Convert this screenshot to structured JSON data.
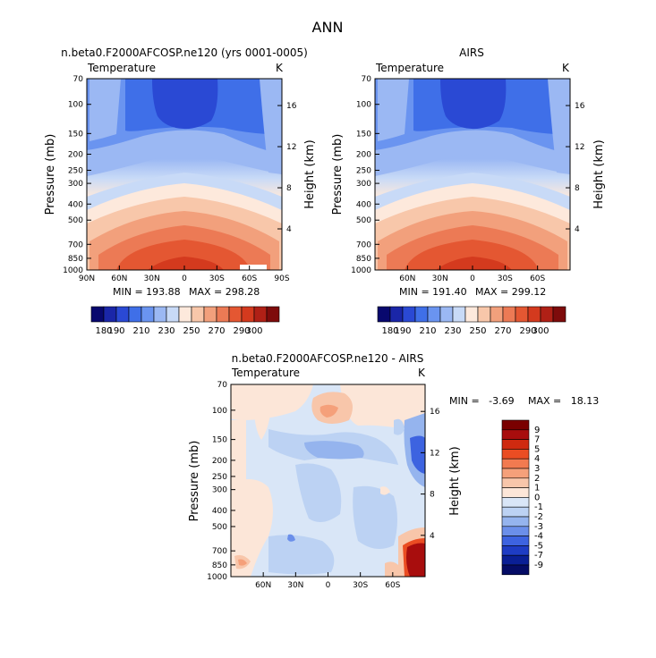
{
  "main_title": "ANN",
  "chart_data": [
    {
      "type": "contour",
      "panel": "top-left",
      "title": "n.beta0.F2000AFCOSP.ne120 (yrs 0001-0005)",
      "variable_label": "Temperature",
      "units": "K",
      "ylabel": "Pressure (mb)",
      "y2label": "Height (km)",
      "pressure_ticks": [
        "70",
        "100",
        "150",
        "200",
        "250",
        "300",
        "400",
        "500",
        "700",
        "850",
        "1000"
      ],
      "height_ticks": [
        "16",
        "12",
        "8",
        "4"
      ],
      "x_ticks": [
        "90N",
        "60N",
        "30N",
        "0",
        "30S",
        "60S",
        "90S"
      ],
      "xlim": [
        90,
        -90
      ],
      "ylim_mb": [
        1000,
        70
      ],
      "min_label": "MIN = 193.88",
      "max_label": "MAX = 298.28",
      "min": 193.88,
      "max": 298.28,
      "colorbar_labels": [
        "180",
        "190",
        "210",
        "230",
        "250",
        "270",
        "290",
        "300"
      ]
    },
    {
      "type": "contour",
      "panel": "top-right",
      "title": "AIRS",
      "variable_label": "Temperature",
      "units": "K",
      "ylabel": "Pressure (mb)",
      "y2label": "Height (km)",
      "pressure_ticks": [
        "70",
        "100",
        "150",
        "200",
        "250",
        "300",
        "400",
        "500",
        "700",
        "850",
        "1000"
      ],
      "height_ticks": [
        "16",
        "12",
        "8",
        "4"
      ],
      "x_ticks": [
        "60N",
        "30N",
        "0",
        "30S",
        "60S"
      ],
      "xlim": [
        90,
        -90
      ],
      "ylim_mb": [
        1000,
        70
      ],
      "min_label": "MIN = 191.40",
      "max_label": "MAX = 299.12",
      "min": 191.4,
      "max": 299.12,
      "colorbar_labels": [
        "180",
        "190",
        "210",
        "230",
        "250",
        "270",
        "290",
        "300"
      ]
    },
    {
      "type": "contour",
      "panel": "bottom",
      "title": "n.beta0.F2000AFCOSP.ne120 - AIRS",
      "variable_label": "Temperature",
      "units": "K",
      "ylabel": "Pressure (mb)",
      "y2label": "Height (km)",
      "pressure_ticks": [
        "70",
        "100",
        "150",
        "200",
        "250",
        "300",
        "400",
        "500",
        "700",
        "850",
        "1000"
      ],
      "height_ticks": [
        "16",
        "12",
        "8",
        "4"
      ],
      "x_ticks": [
        "60N",
        "30N",
        "0",
        "30S",
        "60S"
      ],
      "xlim": [
        90,
        -90
      ],
      "ylim_mb": [
        1000,
        70
      ],
      "min_label": "MIN =   -3.69",
      "max_label": "MAX =   18.13",
      "min": -3.69,
      "max": 18.13,
      "colorbar_labels": [
        "9",
        "7",
        "5",
        "4",
        "3",
        "2",
        "1",
        "0",
        "-1",
        "-2",
        "-3",
        "-4",
        "-5",
        "-7",
        "-9"
      ]
    }
  ],
  "palettes": {
    "temperature": [
      "#08086e",
      "#1a26a8",
      "#2a49d4",
      "#3f6fe8",
      "#6a94f0",
      "#9bb8f3",
      "#c8daf7",
      "#fde9dc",
      "#f8c7aa",
      "#f2a07c",
      "#ec7a55",
      "#e45732",
      "#d43a1e",
      "#b02016",
      "#7e0b0b"
    ],
    "difference": [
      "#7a0000",
      "#a80d0d",
      "#cf2a10",
      "#ea4d23",
      "#f27a50",
      "#f5a07a",
      "#f8c6aa",
      "#fce6d8",
      "#d9e6f7",
      "#bcd2f3",
      "#95b4ee",
      "#6b8fea",
      "#3d63e0",
      "#1e3cc4",
      "#0a1f95",
      "#050c66"
    ]
  }
}
